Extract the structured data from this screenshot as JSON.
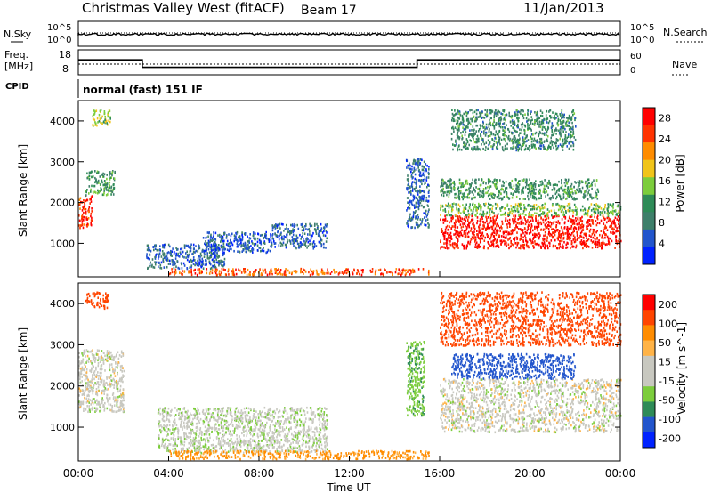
{
  "header": {
    "title": "Christmas Valley West (fitACF)",
    "beam": "Beam 17",
    "date": "11/Jan/2013"
  },
  "nsky_panel": {
    "label": "N.Sky",
    "ticks_left": [
      "10^5",
      "10^0"
    ],
    "right_label": "N.Search",
    "ticks_right": [
      "10^5",
      "10^0"
    ]
  },
  "freq_panel": {
    "label_line1": "Freq.",
    "label_line2": "[MHz]",
    "ticks_left": [
      "18",
      "8"
    ],
    "right_label": "Nave",
    "ticks_right": [
      "60",
      "0"
    ]
  },
  "cpid": {
    "label": "CPID",
    "mode": "normal (fast) 151 IF"
  },
  "colors": {
    "power_scale": [
      "#0022ff",
      "#2255cc",
      "#3e7f6a",
      "#2e8b57",
      "#7ccd3c",
      "#f0c419",
      "#ff8c00",
      "#ff3300",
      "#ff0000"
    ],
    "velocity_scale": [
      "#ff0000",
      "#ff4500",
      "#ff8c00",
      "#ffb347",
      "#c8c8c0",
      "#c8c8c0",
      "#7ccd3c",
      "#2e8b57",
      "#2255cc",
      "#0022ff"
    ]
  },
  "chart_data": [
    {
      "type": "heatmap",
      "title": "",
      "xlabel": "",
      "ylabel": "Slant Range [km]",
      "xlim": [
        "00:00",
        "24:00"
      ],
      "ylim": [
        180,
        4500
      ],
      "y_ticks": [
        1000,
        2000,
        3000,
        4000
      ],
      "colorbar_label": "Power [dB]",
      "colorbar_ticks": [
        4,
        8,
        12,
        16,
        20,
        24,
        28
      ],
      "colorbar_range": [
        0,
        30
      ],
      "regions": [
        {
          "t": [
            0.0,
            0.6
          ],
          "r": [
            1400,
            2200
          ],
          "level": 26
        },
        {
          "t": [
            0.3,
            1.6
          ],
          "r": [
            2200,
            2800
          ],
          "level": 12
        },
        {
          "t": [
            0.6,
            1.4
          ],
          "r": [
            3900,
            4300
          ],
          "level": 16
        },
        {
          "t": [
            3.0,
            6.5
          ],
          "r": [
            400,
            1000
          ],
          "level": 6
        },
        {
          "t": [
            5.5,
            8.5
          ],
          "r": [
            800,
            1300
          ],
          "level": 5
        },
        {
          "t": [
            8.5,
            11.0
          ],
          "r": [
            900,
            1500
          ],
          "level": 6
        },
        {
          "t": [
            4.0,
            15.5
          ],
          "r": [
            250,
            400
          ],
          "level": 24
        },
        {
          "t": [
            14.5,
            15.5
          ],
          "r": [
            1400,
            3100
          ],
          "level": 6
        },
        {
          "t": [
            16.0,
            24.0
          ],
          "r": [
            900,
            1700
          ],
          "level": 28
        },
        {
          "t": [
            16.0,
            24.0
          ],
          "r": [
            1700,
            2000
          ],
          "level": 14
        },
        {
          "t": [
            16.0,
            23.0
          ],
          "r": [
            2100,
            2600
          ],
          "level": 11
        },
        {
          "t": [
            16.5,
            22.0
          ],
          "r": [
            3300,
            4300
          ],
          "level": 10
        }
      ]
    },
    {
      "type": "heatmap",
      "title": "",
      "xlabel": "Time UT",
      "ylabel": "Slant Range [km]",
      "xlim": [
        "00:00",
        "24:00"
      ],
      "x_ticks": [
        "00:00",
        "04:00",
        "08:00",
        "12:00",
        "16:00",
        "20:00",
        "00:00"
      ],
      "ylim": [
        180,
        4500
      ],
      "y_ticks": [
        1000,
        2000,
        3000,
        4000
      ],
      "colorbar_label": "Velocity [m s^-1]",
      "colorbar_ticks": [
        200,
        100,
        50,
        15,
        -15,
        -50,
        -100,
        -200
      ],
      "regions": [
        {
          "t": [
            0.0,
            2.0
          ],
          "r": [
            1400,
            2900
          ],
          "velocity": 0
        },
        {
          "t": [
            0.3,
            1.3
          ],
          "r": [
            3900,
            4300
          ],
          "velocity": -150
        },
        {
          "t": [
            3.5,
            11.0
          ],
          "r": [
            400,
            1500
          ],
          "velocity": 5
        },
        {
          "t": [
            4.0,
            15.5
          ],
          "r": [
            250,
            450
          ],
          "velocity": -60
        },
        {
          "t": [
            14.5,
            15.3
          ],
          "r": [
            1300,
            3100
          ],
          "velocity": 40
        },
        {
          "t": [
            16.0,
            24.0
          ],
          "r": [
            900,
            2200
          ],
          "velocity": 0
        },
        {
          "t": [
            16.5,
            22.0
          ],
          "r": [
            2200,
            2800
          ],
          "velocity": 120
        },
        {
          "t": [
            16.0,
            24.0
          ],
          "r": [
            3000,
            4300
          ],
          "velocity": -120
        }
      ]
    },
    {
      "type": "line",
      "title": "",
      "ylabel": "Freq. [MHz]",
      "ylim": [
        8,
        18
      ],
      "series": [
        {
          "x": [
            "00:00",
            "02:50",
            "02:50",
            "15:00",
            "15:00",
            "24:00"
          ],
          "values": [
            14,
            14,
            11,
            11,
            14,
            14
          ]
        }
      ]
    }
  ],
  "axes": {
    "time_label": "Time UT"
  }
}
